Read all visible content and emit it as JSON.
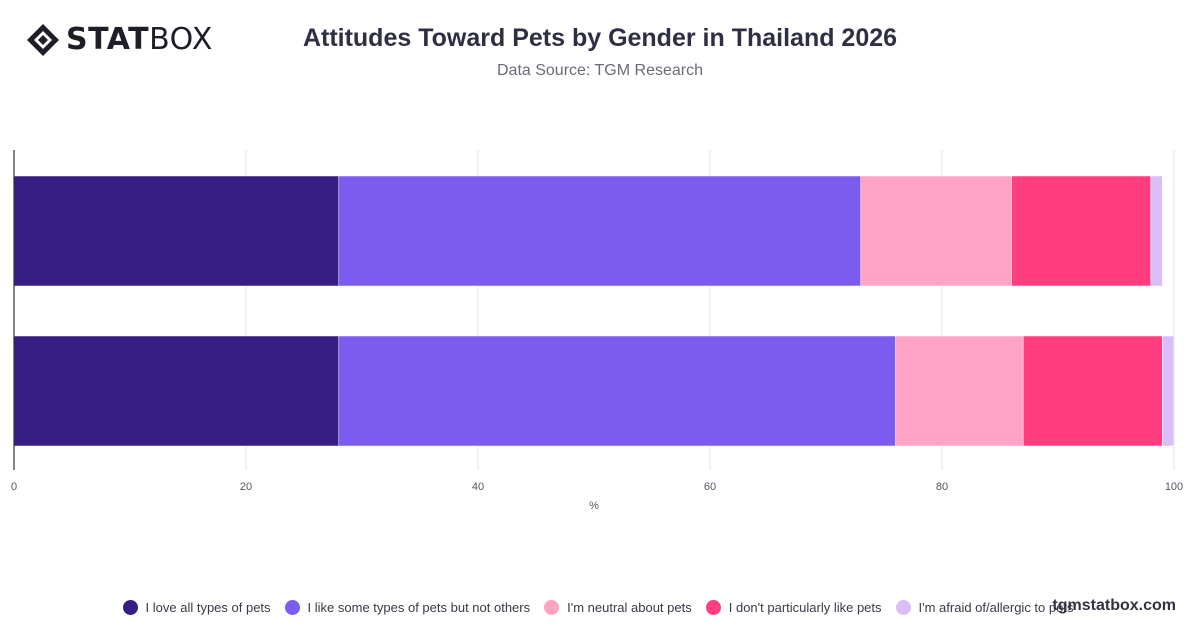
{
  "brand": {
    "logo_bold": "STAT",
    "logo_light": "BOX",
    "watermark": "tgmstatbox.com"
  },
  "header": {
    "title": "Attitudes Toward Pets by Gender in Thailand 2026",
    "subtitle": "Data Source: TGM Research"
  },
  "chart_data": {
    "type": "bar",
    "orientation": "horizontal",
    "stacked": true,
    "categories": [
      "",
      ""
    ],
    "xlabel": "%",
    "ylabel": "",
    "xlim": [
      0,
      100
    ],
    "xticks": [
      0,
      20,
      40,
      60,
      80,
      100
    ],
    "grid": true,
    "legend_position": "bottom",
    "series": [
      {
        "name": "I love all types of pets",
        "color": "#371e83",
        "values": [
          28,
          28
        ]
      },
      {
        "name": "I like some types of pets but not others",
        "color": "#7c5cee",
        "values": [
          45,
          48
        ]
      },
      {
        "name": "I'm neutral about pets",
        "color": "#fea3c3",
        "values": [
          13,
          11
        ]
      },
      {
        "name": "I don't particularly like pets",
        "color": "#ff3e80",
        "values": [
          12,
          12
        ]
      },
      {
        "name": "I'm afraid of/allergic to pets",
        "color": "#d9bffa",
        "values": [
          1,
          1
        ]
      }
    ]
  }
}
